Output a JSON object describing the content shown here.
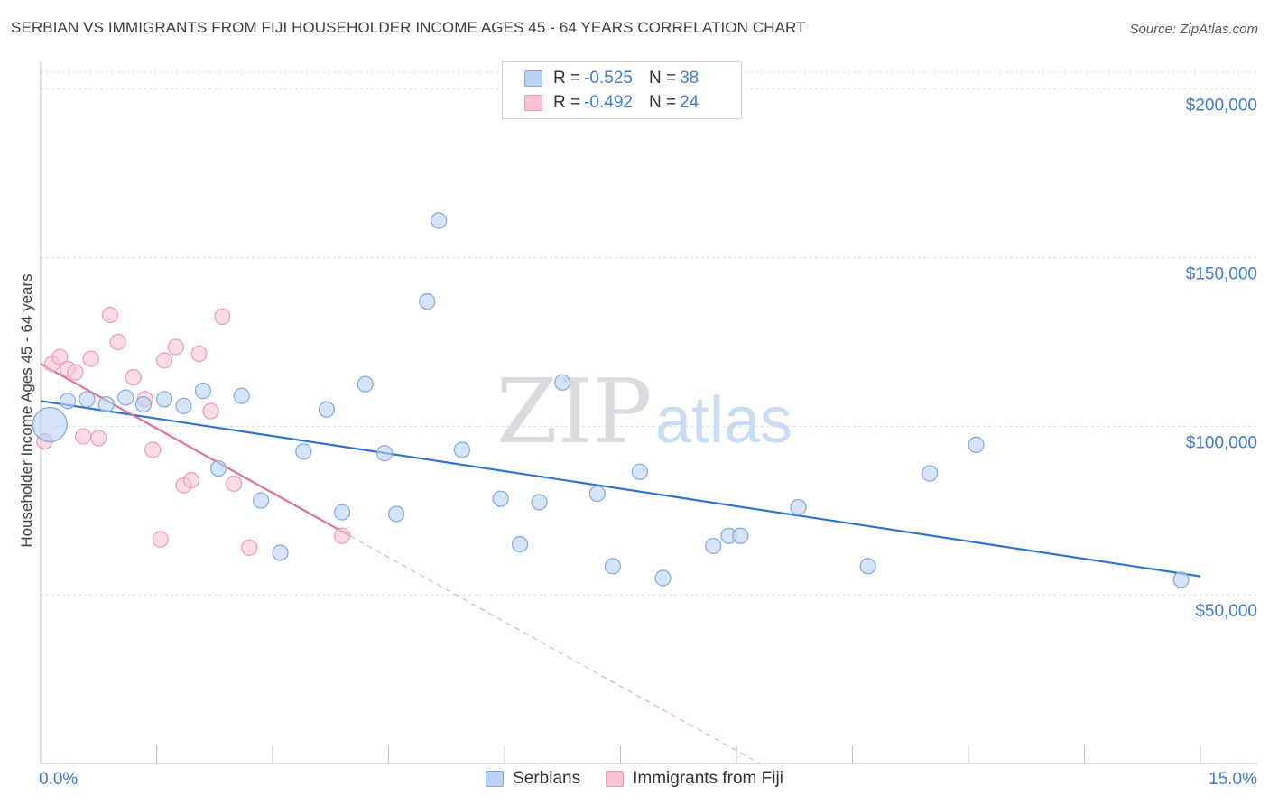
{
  "title": "SERBIAN VS IMMIGRANTS FROM FIJI HOUSEHOLDER INCOME AGES 45 - 64 YEARS CORRELATION CHART",
  "source": "Source: ZipAtlas.com",
  "watermark": {
    "zip": "ZIP",
    "atlas": "atlas"
  },
  "colors": {
    "serbians_fill": "#b9d2f3",
    "serbians_stroke": "#7fa9de",
    "serbians_line": "#2f74d0",
    "fiji_fill": "#f9c4d4",
    "fiji_stroke": "#ec9ab3",
    "fiji_line": "#e0729a",
    "tick_label": "#3f7bd4",
    "grid": "#d9dde2"
  },
  "legend": {
    "rows": [
      {
        "r_label": "R = ",
        "r_value": "-0.525",
        "n_label": "N = ",
        "n_value": "38"
      },
      {
        "r_label": "R = ",
        "r_value": "-0.492",
        "n_label": "N = ",
        "n_value": "24"
      }
    ]
  },
  "bottom_legend": {
    "serbians": "Serbians",
    "fiji": "Immigrants from Fiji"
  },
  "chart_data": {
    "type": "scatter",
    "title": "SERBIAN VS IMMIGRANTS FROM FIJI HOUSEHOLDER INCOME AGES 45 - 64 YEARS CORRELATION CHART",
    "xlabel": "",
    "ylabel": "Householder Income Ages 45 - 64 years",
    "xlim": [
      0,
      15
    ],
    "ylim": [
      0,
      205000
    ],
    "x_tick_labels": [
      "0.0%",
      "15.0%"
    ],
    "y_ticks": [
      50000,
      100000,
      150000,
      200000
    ],
    "y_tick_labels": [
      "$50,000",
      "$100,000",
      "$150,000",
      "$200,000"
    ],
    "grid": true,
    "legend_position": "top-center",
    "series": [
      {
        "name": "Serbians",
        "stats": {
          "R": -0.525,
          "N": 38
        },
        "trend": {
          "x": [
            0.0,
            15.0
          ],
          "y": [
            107500,
            55500
          ]
        },
        "points": [
          {
            "x": 0.12,
            "y": 100500,
            "size": "large"
          },
          {
            "x": 0.35,
            "y": 107500
          },
          {
            "x": 0.6,
            "y": 108000
          },
          {
            "x": 0.85,
            "y": 106500
          },
          {
            "x": 1.1,
            "y": 108500
          },
          {
            "x": 1.33,
            "y": 106500
          },
          {
            "x": 1.6,
            "y": 108000
          },
          {
            "x": 1.85,
            "y": 106000
          },
          {
            "x": 2.1,
            "y": 110500
          },
          {
            "x": 2.3,
            "y": 87500
          },
          {
            "x": 2.6,
            "y": 109000
          },
          {
            "x": 2.85,
            "y": 78000
          },
          {
            "x": 3.1,
            "y": 62500
          },
          {
            "x": 3.4,
            "y": 92500
          },
          {
            "x": 3.7,
            "y": 105000
          },
          {
            "x": 3.9,
            "y": 74500
          },
          {
            "x": 4.2,
            "y": 112500
          },
          {
            "x": 4.45,
            "y": 92000
          },
          {
            "x": 4.6,
            "y": 74000
          },
          {
            "x": 5.0,
            "y": 137000
          },
          {
            "x": 5.15,
            "y": 161000
          },
          {
            "x": 5.45,
            "y": 93000
          },
          {
            "x": 5.95,
            "y": 78500
          },
          {
            "x": 6.2,
            "y": 65000
          },
          {
            "x": 6.45,
            "y": 77500
          },
          {
            "x": 6.75,
            "y": 113000
          },
          {
            "x": 7.2,
            "y": 80000
          },
          {
            "x": 7.4,
            "y": 58500
          },
          {
            "x": 7.75,
            "y": 86500
          },
          {
            "x": 8.05,
            "y": 55000
          },
          {
            "x": 8.7,
            "y": 64500
          },
          {
            "x": 8.9,
            "y": 67500
          },
          {
            "x": 9.05,
            "y": 67500
          },
          {
            "x": 9.8,
            "y": 76000
          },
          {
            "x": 10.7,
            "y": 58500
          },
          {
            "x": 11.5,
            "y": 86000
          },
          {
            "x": 12.1,
            "y": 94500
          },
          {
            "x": 14.75,
            "y": 54500
          }
        ]
      },
      {
        "name": "Immigrants from Fiji",
        "stats": {
          "R": -0.492,
          "N": 24
        },
        "trend": {
          "x": [
            0.0,
            4.0
          ],
          "y": [
            118500,
            67500
          ]
        },
        "trend_extension": {
          "x": [
            4.0,
            9.3
          ],
          "y": [
            67500,
            0
          ]
        },
        "points": [
          {
            "x": 0.05,
            "y": 95500
          },
          {
            "x": 0.15,
            "y": 118500
          },
          {
            "x": 0.25,
            "y": 120500
          },
          {
            "x": 0.35,
            "y": 117000
          },
          {
            "x": 0.45,
            "y": 116000
          },
          {
            "x": 0.55,
            "y": 97000
          },
          {
            "x": 0.65,
            "y": 120000
          },
          {
            "x": 0.75,
            "y": 96500
          },
          {
            "x": 0.9,
            "y": 133000
          },
          {
            "x": 1.0,
            "y": 125000
          },
          {
            "x": 1.2,
            "y": 114500
          },
          {
            "x": 1.35,
            "y": 108000
          },
          {
            "x": 1.45,
            "y": 93000
          },
          {
            "x": 1.55,
            "y": 66500
          },
          {
            "x": 1.6,
            "y": 119500
          },
          {
            "x": 1.75,
            "y": 123500
          },
          {
            "x": 1.85,
            "y": 82500
          },
          {
            "x": 1.95,
            "y": 84000
          },
          {
            "x": 2.05,
            "y": 121500
          },
          {
            "x": 2.2,
            "y": 104500
          },
          {
            "x": 2.35,
            "y": 132500
          },
          {
            "x": 2.5,
            "y": 83000
          },
          {
            "x": 2.7,
            "y": 64000
          },
          {
            "x": 3.9,
            "y": 67500
          }
        ]
      }
    ]
  }
}
